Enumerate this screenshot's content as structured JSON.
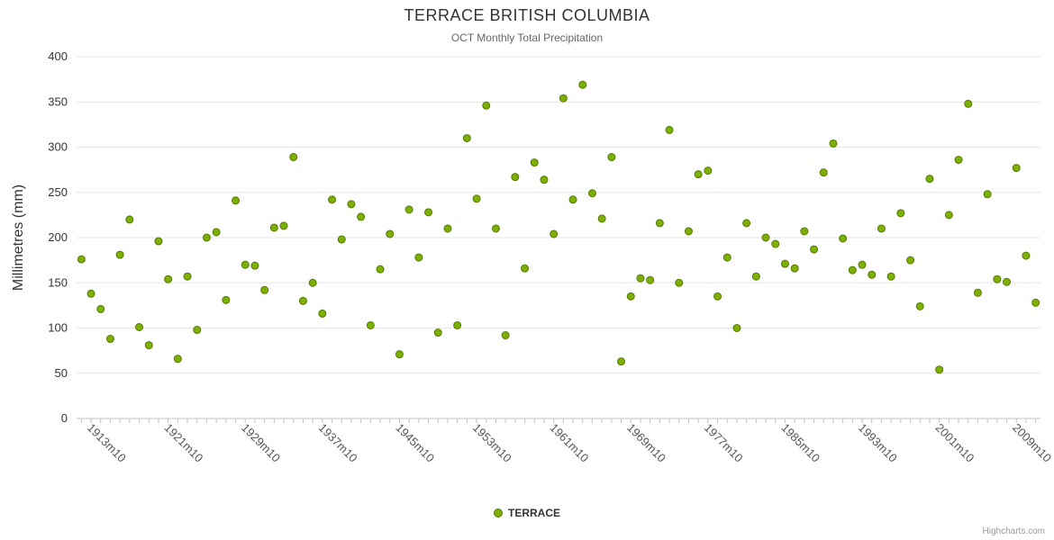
{
  "credits": "Highcharts.com",
  "chart_data": {
    "type": "scatter",
    "title": "TERRACE BRITISH COLUMBIA",
    "subtitle": "OCT Monthly Total Precipitation",
    "xlabel": "",
    "ylabel": "Millimetres (mm)",
    "ylim": [
      0,
      400
    ],
    "y_tick_interval": 50,
    "y_tick_labels": [
      0,
      50,
      100,
      150,
      200,
      250,
      300,
      350,
      400
    ],
    "xlim": [
      1911.5,
      2011.5
    ],
    "x_tick_labels": [
      "1913m10",
      "1921m10",
      "1929m10",
      "1937m10",
      "1945m10",
      "1953m10",
      "1961m10",
      "1969m10",
      "1977m10",
      "1985m10",
      "1993m10",
      "2001m10",
      "2009m10"
    ],
    "grid": "horizontal-only",
    "legend_position": "bottom-center",
    "series": [
      {
        "name": "TERRACE",
        "color": "#7db004",
        "marker_border_color": "#557a00",
        "points": [
          [
            1912,
            176
          ],
          [
            1913,
            138
          ],
          [
            1914,
            121
          ],
          [
            1915,
            88
          ],
          [
            1916,
            181
          ],
          [
            1917,
            220
          ],
          [
            1918,
            101
          ],
          [
            1919,
            81
          ],
          [
            1920,
            196
          ],
          [
            1921,
            154
          ],
          [
            1922,
            66
          ],
          [
            1923,
            157
          ],
          [
            1924,
            98
          ],
          [
            1925,
            200
          ],
          [
            1926,
            206
          ],
          [
            1927,
            131
          ],
          [
            1928,
            241
          ],
          [
            1929,
            170
          ],
          [
            1930,
            169
          ],
          [
            1931,
            142
          ],
          [
            1932,
            211
          ],
          [
            1933,
            213
          ],
          [
            1934,
            289
          ],
          [
            1935,
            130
          ],
          [
            1936,
            150
          ],
          [
            1937,
            116
          ],
          [
            1938,
            242
          ],
          [
            1939,
            198
          ],
          [
            1940,
            237
          ],
          [
            1941,
            223
          ],
          [
            1942,
            103
          ],
          [
            1943,
            165
          ],
          [
            1944,
            204
          ],
          [
            1945,
            71
          ],
          [
            1946,
            231
          ],
          [
            1947,
            178
          ],
          [
            1948,
            228
          ],
          [
            1949,
            95
          ],
          [
            1950,
            210
          ],
          [
            1951,
            103
          ],
          [
            1952,
            310
          ],
          [
            1953,
            243
          ],
          [
            1954,
            346
          ],
          [
            1955,
            210
          ],
          [
            1956,
            92
          ],
          [
            1957,
            267
          ],
          [
            1958,
            166
          ],
          [
            1959,
            283
          ],
          [
            1960,
            264
          ],
          [
            1961,
            204
          ],
          [
            1962,
            354
          ],
          [
            1963,
            242
          ],
          [
            1964,
            369
          ],
          [
            1965,
            249
          ],
          [
            1966,
            221
          ],
          [
            1967,
            289
          ],
          [
            1968,
            63
          ],
          [
            1969,
            135
          ],
          [
            1970,
            155
          ],
          [
            1971,
            153
          ],
          [
            1972,
            216
          ],
          [
            1973,
            319
          ],
          [
            1974,
            150
          ],
          [
            1975,
            207
          ],
          [
            1976,
            270
          ],
          [
            1977,
            274
          ],
          [
            1978,
            135
          ],
          [
            1979,
            178
          ],
          [
            1980,
            100
          ],
          [
            1981,
            216
          ],
          [
            1982,
            157
          ],
          [
            1983,
            200
          ],
          [
            1984,
            193
          ],
          [
            1985,
            171
          ],
          [
            1986,
            166
          ],
          [
            1987,
            207
          ],
          [
            1988,
            187
          ],
          [
            1989,
            272
          ],
          [
            1990,
            304
          ],
          [
            1991,
            199
          ],
          [
            1992,
            164
          ],
          [
            1993,
            170
          ],
          [
            1994,
            159
          ],
          [
            1995,
            210
          ],
          [
            1996,
            157
          ],
          [
            1997,
            227
          ],
          [
            1998,
            175
          ],
          [
            1999,
            124
          ],
          [
            2000,
            265
          ],
          [
            2001,
            54
          ],
          [
            2002,
            225
          ],
          [
            2003,
            286
          ],
          [
            2004,
            348
          ],
          [
            2005,
            139
          ],
          [
            2006,
            248
          ],
          [
            2007,
            154
          ],
          [
            2008,
            151
          ],
          [
            2009,
            277
          ],
          [
            2010,
            180
          ],
          [
            2011,
            128
          ]
        ]
      }
    ]
  }
}
